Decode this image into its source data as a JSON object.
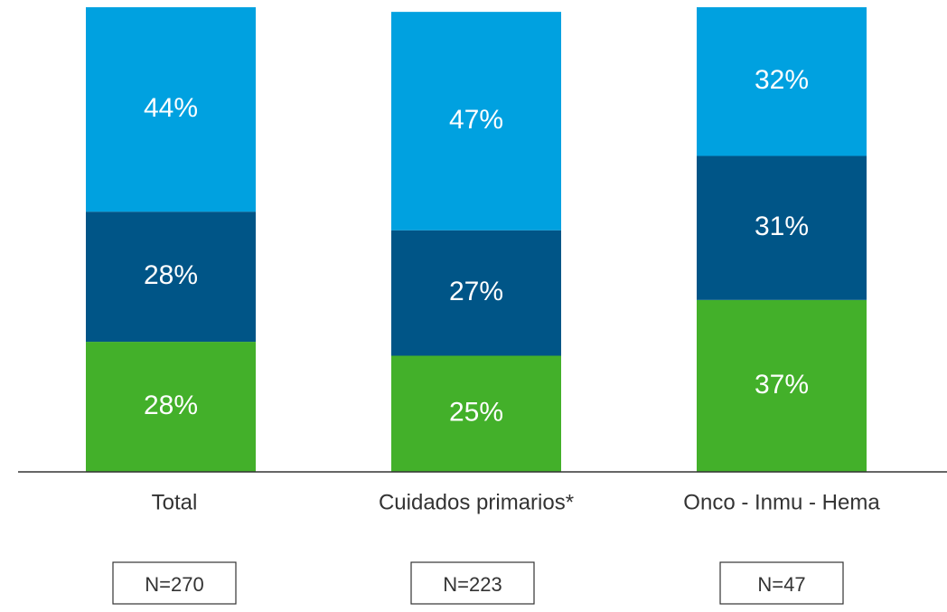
{
  "chart_data": {
    "type": "stacked_bar",
    "categories": [
      "Total",
      "Cuidados primarios*",
      "Onco - Inmu - Hema"
    ],
    "series": [
      {
        "color": "#43b02a",
        "values": [
          28,
          25,
          37
        ],
        "value_labels": [
          "28%",
          "25%",
          "37%"
        ]
      },
      {
        "color": "#005587",
        "values": [
          28,
          27,
          31
        ],
        "value_labels": [
          "28%",
          "27%",
          "31%"
        ]
      },
      {
        "color": "#00a1e0",
        "values": [
          44,
          47,
          32
        ],
        "value_labels": [
          "44%",
          "47%",
          "32%"
        ]
      }
    ],
    "ylim": [
      0,
      100
    ],
    "annotations": [
      "N=270",
      "N=223",
      "N=47"
    ]
  }
}
